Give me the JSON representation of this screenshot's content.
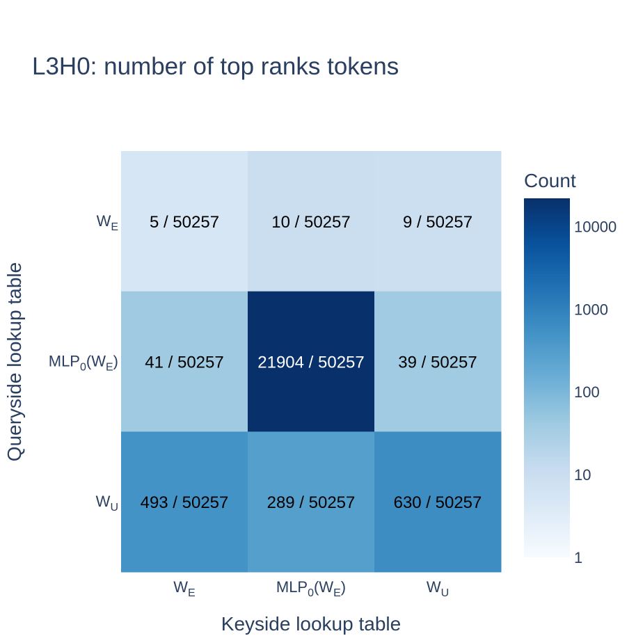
{
  "title": "L3H0: number of top ranks tokens",
  "chart_data": {
    "type": "heatmap",
    "title": "L3H0: number of top ranks tokens",
    "xlabel": "Keyside lookup table",
    "ylabel": "Queryside lookup table",
    "x_categories": [
      {
        "base": "W",
        "parts": [
          {
            "t": "W"
          },
          {
            "t": "E",
            "sub": true
          }
        ]
      },
      {
        "base": "MLP0(WE)",
        "parts": [
          {
            "t": "MLP"
          },
          {
            "t": "0",
            "sub": true
          },
          {
            "t": "(W"
          },
          {
            "t": "E",
            "sub": true
          },
          {
            "t": ")"
          }
        ]
      },
      {
        "base": "WU",
        "parts": [
          {
            "t": "W"
          },
          {
            "t": "U",
            "sub": true
          }
        ]
      }
    ],
    "y_categories": [
      {
        "base": "WE",
        "parts": [
          {
            "t": "W"
          },
          {
            "t": "E",
            "sub": true
          }
        ]
      },
      {
        "base": "MLP0(WE)",
        "parts": [
          {
            "t": "MLP"
          },
          {
            "t": "0",
            "sub": true
          },
          {
            "t": "(W"
          },
          {
            "t": "E",
            "sub": true
          },
          {
            "t": ")"
          }
        ]
      },
      {
        "base": "WU",
        "parts": [
          {
            "t": "W"
          },
          {
            "t": "U",
            "sub": true
          }
        ]
      }
    ],
    "values": [
      [
        5,
        10,
        9
      ],
      [
        41,
        21904,
        39
      ],
      [
        493,
        289,
        630
      ]
    ],
    "labels": [
      [
        "5 / 50257",
        "10 / 50257",
        "9 / 50257"
      ],
      [
        "41 / 50257",
        "21904 / 50257",
        "39 / 50257"
      ],
      [
        "493 / 50257",
        "289 / 50257",
        "630 / 50257"
      ]
    ],
    "colorscale": "Blues",
    "log_color": true,
    "colorbar": {
      "title": "Count",
      "ticks": [
        1,
        10,
        100,
        1000,
        10000
      ],
      "tick_labels": [
        "1",
        "10",
        "100",
        "1000",
        "10000"
      ],
      "range": [
        1,
        21904
      ]
    }
  }
}
